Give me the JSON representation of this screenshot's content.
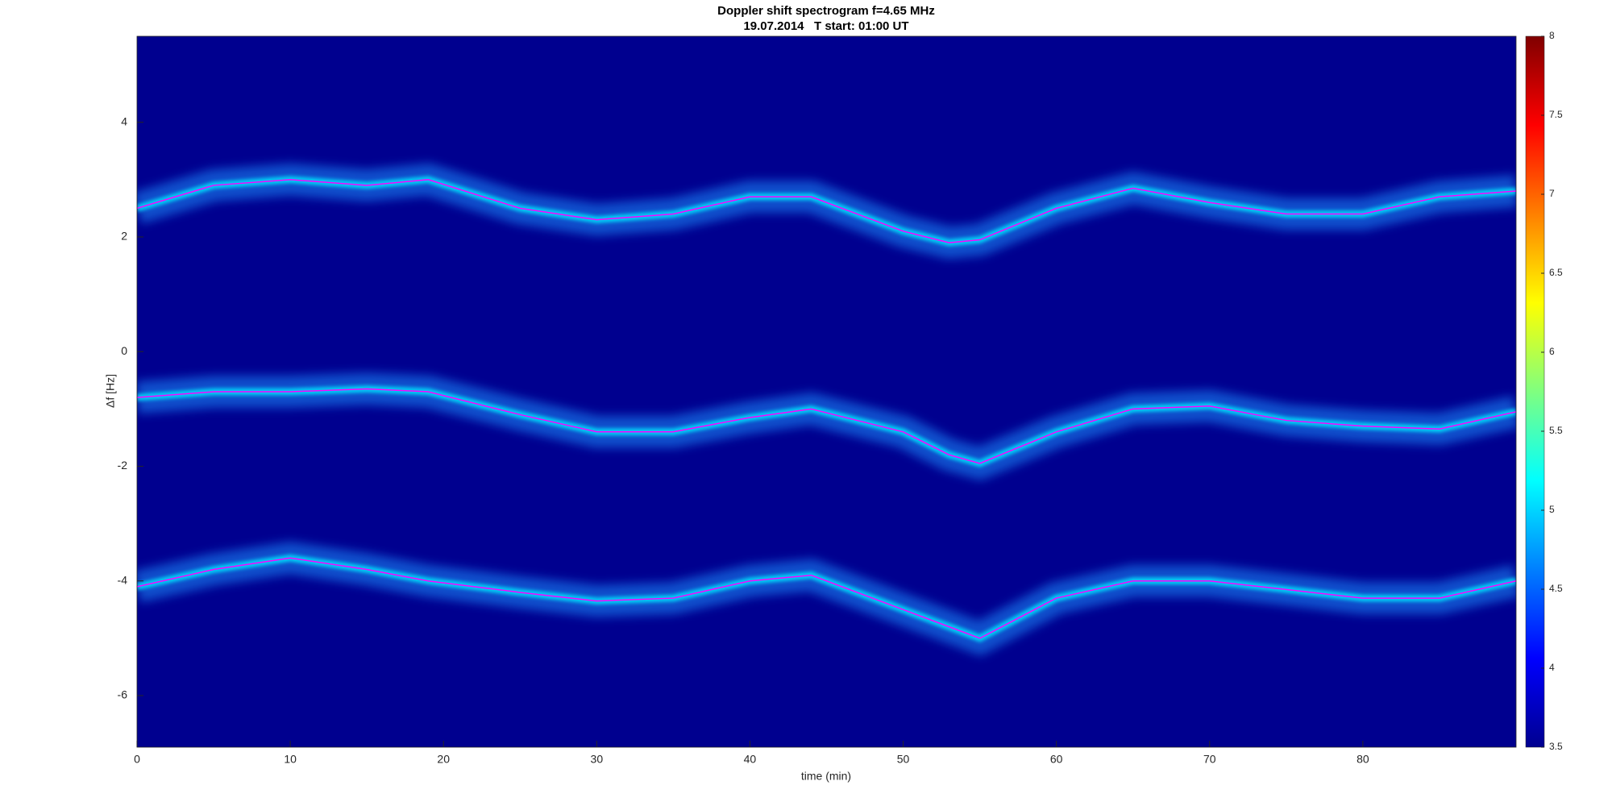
{
  "chart_data": {
    "type": "spectrogram",
    "title": "Doppler shift spectrogram f=4.65 MHz",
    "subtitle": "19.07.2014   T start: 01:00 UT",
    "x_label": "time (min)",
    "y_label": "Δf [Hz]",
    "x": [
      0,
      5,
      10,
      15,
      19,
      25,
      30,
      35,
      40,
      44,
      50,
      53,
      55,
      60,
      65,
      70,
      75,
      80,
      85,
      90
    ],
    "series": [
      {
        "color": "#ff00ff",
        "values": [
          2.5,
          2.9,
          3.0,
          2.9,
          3.0,
          2.5,
          2.3,
          2.4,
          2.7,
          2.7,
          2.1,
          1.9,
          1.95,
          2.5,
          2.85,
          2.6,
          2.4,
          2.4,
          2.7,
          2.8
        ]
      },
      {
        "color": "#ff00ff",
        "values": [
          -0.8,
          -0.7,
          -0.7,
          -0.65,
          -0.7,
          -1.1,
          -1.4,
          -1.4,
          -1.15,
          -1.0,
          -1.4,
          -1.8,
          -1.95,
          -1.4,
          -1.0,
          -0.95,
          -1.2,
          -1.3,
          -1.35,
          -1.05
        ]
      },
      {
        "color": "#ff00ff",
        "values": [
          -4.1,
          -3.8,
          -3.6,
          -3.8,
          -4.0,
          -4.2,
          -4.35,
          -4.3,
          -4.0,
          -3.9,
          -4.5,
          -4.8,
          -5.0,
          -4.3,
          -4.0,
          -4.0,
          -4.15,
          -4.3,
          -4.3,
          -4.0
        ]
      }
    ],
    "background_color": "#00008f",
    "xlim": [
      0,
      90
    ],
    "xticks": [
      0,
      10,
      20,
      30,
      40,
      50,
      60,
      70,
      80
    ],
    "ylim": [
      -6.9,
      5.5
    ],
    "yticks": [
      -6,
      -4,
      -2,
      0,
      2,
      4
    ],
    "colormap": "jet",
    "clim": [
      3.5,
      8
    ],
    "cticks": [
      3.5,
      4,
      4.5,
      5,
      5.5,
      6,
      6.5,
      7,
      7.5,
      8
    ]
  }
}
